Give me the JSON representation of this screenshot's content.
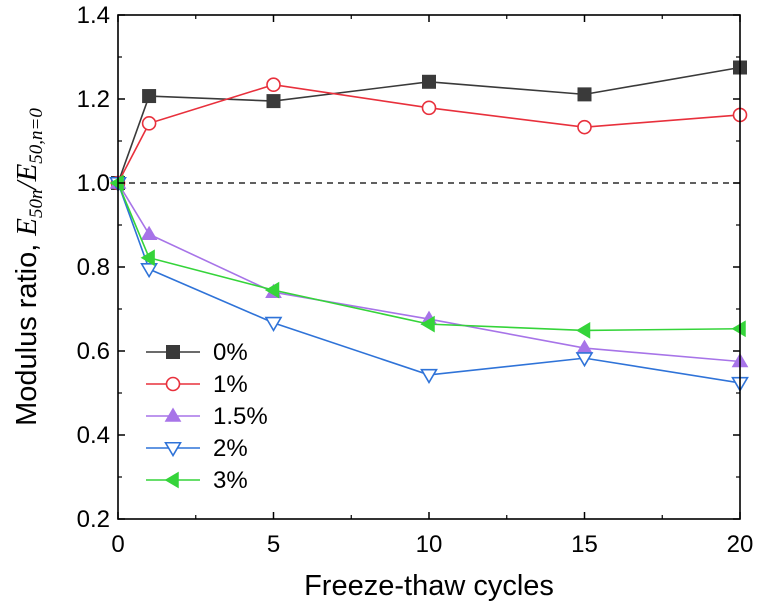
{
  "chart_data": {
    "type": "line",
    "xlabel": "Freeze-thaw cycles",
    "ylabel_prefix": "Modulus ratio, ",
    "ylabel_math_num": "E",
    "ylabel_math_num_sub": "50n",
    "ylabel_math_sep": "/",
    "ylabel_math_den": "E",
    "ylabel_math_den_sub": "50,n=0",
    "xlim": [
      0,
      20
    ],
    "ylim": [
      0.2,
      1.4
    ],
    "xticks": [
      0,
      5,
      10,
      15,
      20
    ],
    "xtick_labels": [
      "0",
      "5",
      "10",
      "15",
      "20"
    ],
    "yticks": [
      0.2,
      0.4,
      0.6,
      0.8,
      1.0,
      1.2,
      1.4
    ],
    "ytick_labels": [
      "0.2",
      "0.4",
      "0.6",
      "0.8",
      "1.0",
      "1.2",
      "1.4"
    ],
    "reference_line": {
      "y": 1.0,
      "style": "dashed"
    },
    "grid": false,
    "legend_position": "lower-left",
    "x": [
      0,
      1,
      5,
      10,
      15,
      20
    ],
    "series": [
      {
        "name": "0%",
        "values": [
          1.0,
          1.207,
          1.195,
          1.241,
          1.211,
          1.275
        ],
        "color": "#3a3a3a",
        "marker": "square-filled"
      },
      {
        "name": "1%",
        "values": [
          1.0,
          1.142,
          1.234,
          1.179,
          1.133,
          1.162
        ],
        "color": "#e8303c",
        "marker": "circle-open"
      },
      {
        "name": "1.5%",
        "values": [
          1.0,
          0.878,
          0.74,
          0.676,
          0.607,
          0.575
        ],
        "color": "#a774e8",
        "marker": "triangle-up-filled"
      },
      {
        "name": "2%",
        "values": [
          1.0,
          0.795,
          0.667,
          0.543,
          0.583,
          0.524
        ],
        "color": "#2f73d8",
        "marker": "triangle-down-open"
      },
      {
        "name": "3%",
        "values": [
          1.0,
          0.822,
          0.745,
          0.664,
          0.649,
          0.653
        ],
        "color": "#35d43a",
        "marker": "triangle-left-filled"
      }
    ]
  }
}
